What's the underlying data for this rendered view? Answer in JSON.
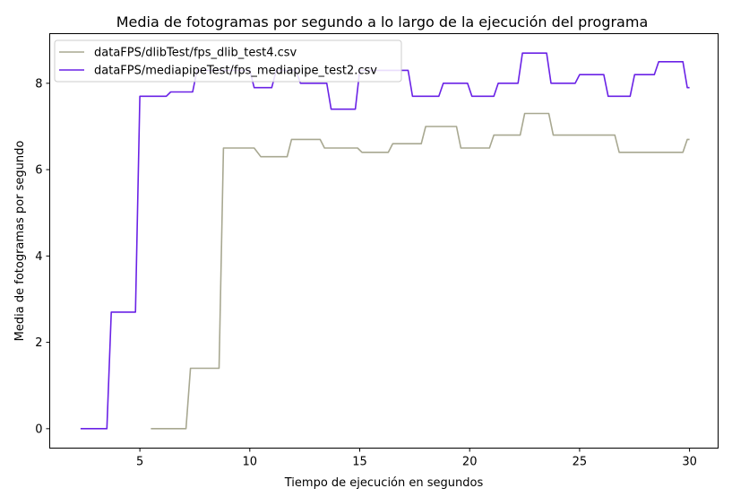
{
  "chart_data": {
    "type": "line",
    "title": "Media de fotogramas por segundo a lo largo de la ejecución del programa",
    "xlabel": "Tiempo de ejecución en segundos",
    "ylabel": "Media de fotogramas por segundo",
    "xlim": [
      0.9,
      31.3
    ],
    "ylim": [
      -0.45,
      9.15
    ],
    "xticks": [
      5,
      10,
      15,
      20,
      25,
      30
    ],
    "yticks": [
      0,
      2,
      4,
      6,
      8
    ],
    "grid": false,
    "legend_position": "top-left",
    "series": [
      {
        "name": "dataFPS/dlibTest/fps_dlib_test4.csv",
        "color": "#a8a891",
        "x": [
          5.5,
          7.1,
          7.3,
          8.6,
          8.8,
          10.2,
          10.5,
          11.7,
          11.9,
          13.2,
          13.4,
          14.9,
          15.1,
          16.3,
          16.5,
          17.8,
          18.0,
          19.4,
          19.6,
          20.9,
          21.1,
          22.3,
          22.5,
          23.6,
          23.8,
          26.6,
          26.8,
          29.7,
          29.9,
          30.0
        ],
        "y": [
          0,
          0,
          1.4,
          1.4,
          6.5,
          6.5,
          6.3,
          6.3,
          6.7,
          6.7,
          6.5,
          6.5,
          6.4,
          6.4,
          6.6,
          6.6,
          7.0,
          7.0,
          6.5,
          6.5,
          6.8,
          6.8,
          7.3,
          7.3,
          6.8,
          6.8,
          6.4,
          6.4,
          6.7,
          6.7
        ]
      },
      {
        "name": "dataFPS/mediapipeTest/fps_mediapipe_test2.csv",
        "color": "#6a22e6",
        "x": [
          2.3,
          3.5,
          3.7,
          4.8,
          5.0,
          6.2,
          6.4,
          7.4,
          7.6,
          8.8,
          9.0,
          10.0,
          10.2,
          11.0,
          11.2,
          12.1,
          12.3,
          13.5,
          13.7,
          14.8,
          15.0,
          17.2,
          17.4,
          18.6,
          18.8,
          19.9,
          20.1,
          21.1,
          21.3,
          22.2,
          22.4,
          23.5,
          23.7,
          24.8,
          25.0,
          26.1,
          26.3,
          27.3,
          27.5,
          28.4,
          28.6,
          29.7,
          29.9,
          30.0
        ],
        "y": [
          0,
          0,
          2.7,
          2.7,
          7.7,
          7.7,
          7.8,
          7.8,
          8.3,
          8.3,
          8.3,
          8.3,
          7.9,
          7.9,
          8.3,
          8.3,
          8.0,
          8.0,
          7.4,
          7.4,
          8.3,
          8.3,
          7.7,
          7.7,
          8.0,
          8.0,
          7.7,
          7.7,
          8.0,
          8.0,
          8.7,
          8.7,
          8.0,
          8.0,
          8.2,
          8.2,
          7.7,
          7.7,
          8.2,
          8.2,
          8.5,
          8.5,
          7.9,
          7.9
        ]
      }
    ]
  }
}
